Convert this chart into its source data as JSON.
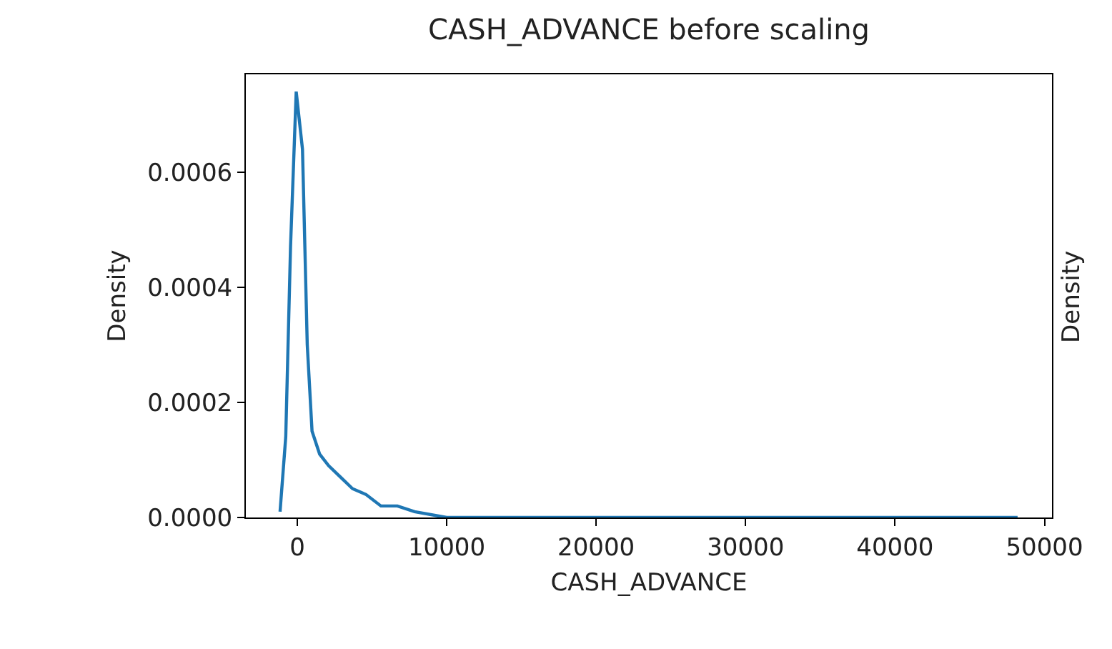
{
  "chart_data": {
    "type": "line",
    "title": "CASH_ADVANCE before scaling",
    "xlabel": "CASH_ADVANCE",
    "ylabel": "Density",
    "annotations": [
      "Density"
    ],
    "x": [
      -1150,
      -770,
      -450,
      -70,
      350,
      670,
      990,
      1500,
      2100,
      2900,
      3700,
      4600,
      5600,
      6700,
      7850,
      10000,
      15000,
      20000,
      30000,
      40000,
      48200
    ],
    "series": [
      {
        "color": "#1f77b4",
        "values": [
          1e-05,
          0.00014,
          0.00047,
          0.00074,
          0.00064,
          0.0003,
          0.00015,
          0.00011,
          9e-05,
          7e-05,
          5e-05,
          4e-05,
          2e-05,
          2e-05,
          1e-05,
          0,
          0,
          0,
          0,
          0,
          0
        ]
      }
    ],
    "xlim": [
      -3440,
      50500
    ],
    "ylim": [
      0,
      0.00077
    ],
    "xticks": [
      0,
      10000,
      20000,
      30000,
      40000,
      50000
    ],
    "yticks": [
      {
        "value": 0,
        "label": "0.0000"
      },
      {
        "value": 0.0002,
        "label": "0.0002"
      },
      {
        "value": 0.0004,
        "label": "0.0004"
      },
      {
        "value": 0.0006,
        "label": "0.0006"
      }
    ],
    "legend": false,
    "marker": "none",
    "line_style": "solid"
  }
}
